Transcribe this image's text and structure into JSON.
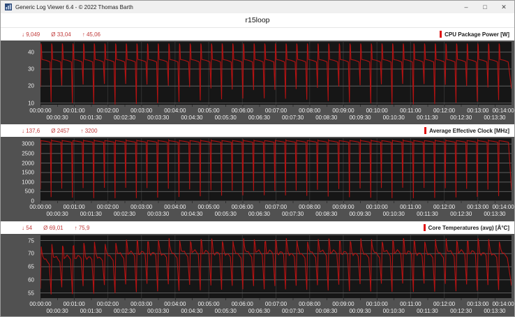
{
  "window": {
    "title": "Generic Log Viewer 6.4 - © 2022 Thomas Barth",
    "controls": {
      "minimize": "–",
      "maximize": "□",
      "close": "✕"
    }
  },
  "header": {
    "title": "r15loop"
  },
  "colors": {
    "series_red": "#b51212",
    "legend_red": "#e01111",
    "stats_red": "#c03a3a",
    "panel_gray": "#515151",
    "plot_bg": "#161616",
    "grid_major": "#5e5e5e",
    "grid_minor": "#313131",
    "titlebar_bg": "#f0f0f0",
    "icon_blue": "#2d4a7a"
  },
  "xaxis": {
    "total_s": 840,
    "major": [
      "00:00:00",
      "00:01:00",
      "00:02:00",
      "00:03:00",
      "00:04:00",
      "00:05:00",
      "00:06:00",
      "00:07:00",
      "00:08:00",
      "00:09:00",
      "00:10:00",
      "00:11:00",
      "00:12:00",
      "00:13:00",
      "00:14:00"
    ],
    "major_t": [
      0,
      60,
      120,
      180,
      240,
      300,
      360,
      420,
      480,
      540,
      600,
      660,
      720,
      780,
      840
    ],
    "minor": [
      "00:00:30",
      "00:01:30",
      "00:02:30",
      "00:03:30",
      "00:04:30",
      "00:05:30",
      "00:06:30",
      "00:07:30",
      "00:08:30",
      "00:09:30",
      "00:10:30",
      "00:11:30",
      "00:12:30",
      "00:13:30"
    ],
    "minor_t": [
      30,
      90,
      150,
      210,
      270,
      330,
      390,
      450,
      510,
      570,
      630,
      690,
      750,
      810
    ]
  },
  "chart_data": [
    {
      "type": "line",
      "name": "cpu-package-power",
      "legend": "CPU Package Power [W]",
      "stats": {
        "min": "↓ 9,049",
        "avg": "Ø 33,04",
        "max": "↑ 45,06"
      },
      "min_value": 9.049,
      "avg_value": 33.04,
      "max_value": 45.06,
      "ylim": [
        9,
        46
      ],
      "yticks": [
        10,
        20,
        30,
        40
      ],
      "x_range_s": [
        0,
        840
      ],
      "waveform": {
        "description": "periodic Cinebench R15 loop: spike to ~45 W, plateau ~35 W, sharp dip to 10-21 W each run boundary",
        "period_s": 19,
        "total_s": 840,
        "peak": 45,
        "peak_var": 0,
        "plateau": 35.1,
        "step": 1.2,
        "dip_shallow": 19.5,
        "dip_deep": 11,
        "dip_var": 1.8,
        "template": [
          [
            0,
            "dip"
          ],
          [
            0.05,
            "peak"
          ],
          [
            0.09,
            "peak_end"
          ],
          [
            0.14,
            "plateau_hi"
          ],
          [
            0.55,
            "plateau"
          ],
          [
            0.9,
            "plateau_lo"
          ]
        ]
      }
    },
    {
      "type": "line",
      "name": "average-effective-clock",
      "legend": "Average Effective Clock [MHz]",
      "stats": {
        "min": "↓ 137,6",
        "avg": "Ø 2457",
        "max": "↑ 3200"
      },
      "min_value": 137.6,
      "avg_value": 2457,
      "max_value": 3200,
      "ylim": [
        0,
        3300
      ],
      "yticks": [
        0,
        500,
        1000,
        1500,
        2000,
        2500,
        3000
      ],
      "x_range_s": [
        0,
        840
      ],
      "waveform": {
        "description": "plateau ~3150 MHz with sharp periodic dips to 150-700 MHz between runs",
        "period_s": 19,
        "total_s": 840,
        "peak": 3190,
        "peak_var": 15,
        "plateau": 3140,
        "step": 60,
        "dip_shallow": 620,
        "dip_deep": 230,
        "dip_var": 80,
        "template": [
          [
            0,
            "dip"
          ],
          [
            0.04,
            "peak"
          ],
          [
            0.08,
            "plateau_hi"
          ],
          [
            0.5,
            "plateau"
          ],
          [
            0.92,
            "plateau_lo"
          ]
        ]
      }
    },
    {
      "type": "line",
      "name": "core-temperatures-avg",
      "legend": "Core Temperatures (avg) [Å°C]",
      "stats": {
        "min": "↓ 54",
        "avg": "Ø 69,01",
        "max": "↑ 75,9"
      },
      "min_value": 54,
      "avg_value": 69.01,
      "max_value": 75.9,
      "ylim": [
        53,
        77
      ],
      "yticks": [
        55,
        60,
        65,
        70,
        75
      ],
      "x_range_s": [
        0,
        840
      ],
      "waveform": {
        "description": "sawtooth between ~55 °C dips and ~75 °C peaks, wiggly ~68 °C plateau, slow upward drift over first minutes",
        "period_s": 19,
        "total_s": 840,
        "peak": 72.7,
        "peak_var": 0.7,
        "plateau": 67.6,
        "step": 1.2,
        "dip_shallow": 56.6,
        "dip_deep": 54.4,
        "dip_var": 0.5,
        "drift": 2.5,
        "ramp_cycles": 10,
        "wiggle": 0.8,
        "template": [
          [
            0,
            "dip"
          ],
          [
            0.07,
            "peak"
          ],
          [
            0.13,
            "peak_end"
          ],
          [
            0.22,
            "plateau_hi"
          ],
          [
            0.35,
            "plateau"
          ],
          [
            0.5,
            "plateau_hi"
          ],
          [
            0.65,
            "plateau"
          ],
          [
            0.82,
            "plateau_lo"
          ]
        ]
      }
    }
  ]
}
